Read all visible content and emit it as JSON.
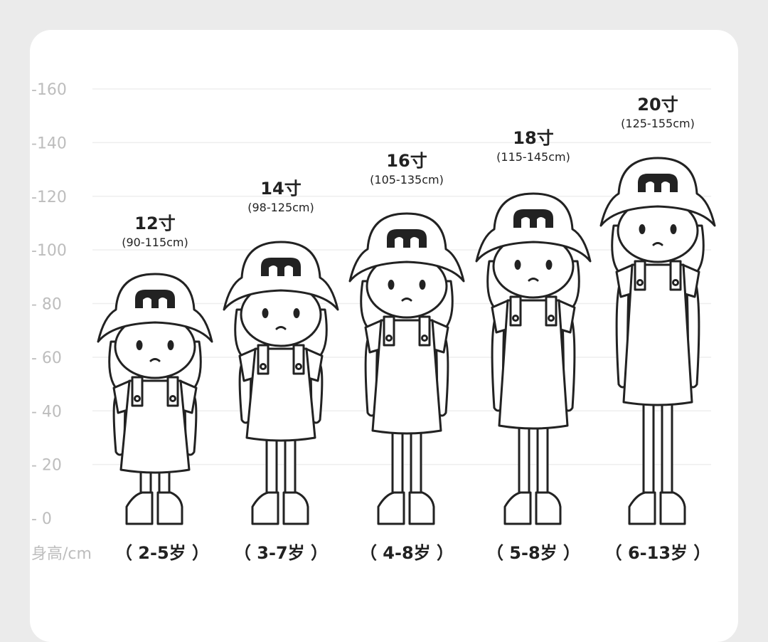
{
  "chart_data": {
    "type": "range",
    "ylabel": "身高/cm",
    "ylim": [
      0,
      160
    ],
    "yticks": [
      "-160",
      "-140",
      "-120",
      "-100",
      "- 80",
      "- 60",
      "- 40",
      "- 20",
      "- 0"
    ],
    "ytick_values": [
      160,
      140,
      120,
      100,
      80,
      60,
      40,
      20,
      0
    ],
    "grid": true,
    "categories": [
      "12寸",
      "14寸",
      "16寸",
      "18寸",
      "20寸"
    ],
    "range_labels": [
      "(90-115cm)",
      "(98-125cm)",
      "(105-135cm)",
      "(115-145cm)",
      "(125-155cm)"
    ],
    "ranges": [
      [
        90,
        115
      ],
      [
        98,
        125
      ],
      [
        105,
        135
      ],
      [
        115,
        145
      ],
      [
        125,
        155
      ]
    ],
    "ages": [
      "（ 2-5岁 ）",
      "（ 3-7岁 ）",
      "（ 4-8岁 ）",
      "（ 5-8岁 ）",
      "（ 6-13岁 ）"
    ]
  },
  "colors": {
    "background": "#ebebeb",
    "card": "#ffffff",
    "tick": "#bdbdbd",
    "line": "#222222"
  },
  "hat_logo": "m"
}
